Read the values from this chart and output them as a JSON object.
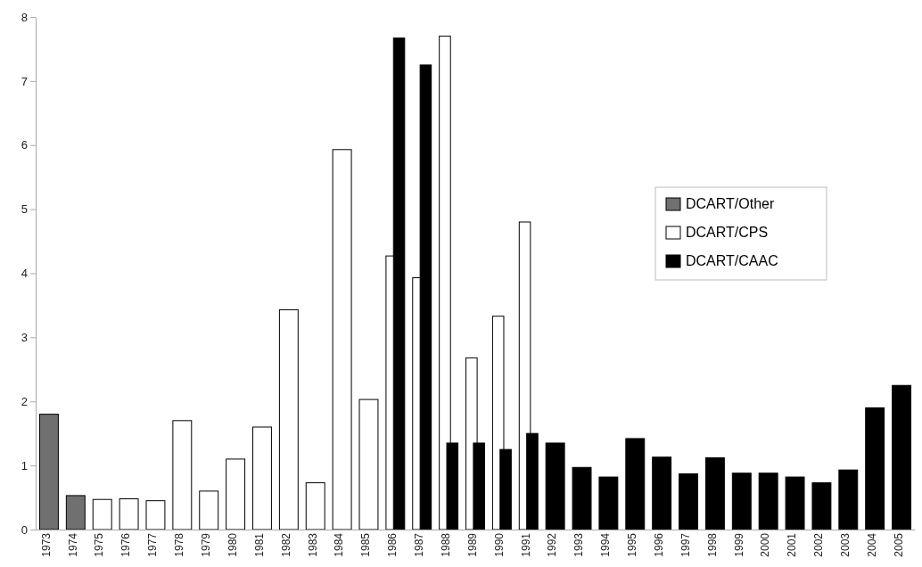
{
  "chart_data": {
    "type": "bar",
    "categories": [
      "1973",
      "1974",
      "1975",
      "1976",
      "1977",
      "1978",
      "1979",
      "1980",
      "1981",
      "1982",
      "1983",
      "1984",
      "1985",
      "1986",
      "1987",
      "1988",
      "1989",
      "1990",
      "1991",
      "1992",
      "1993",
      "1994",
      "1995",
      "1996",
      "1997",
      "1998",
      "1999",
      "2000",
      "2001",
      "2002",
      "2003",
      "2004",
      "2005"
    ],
    "series": [
      {
        "name": "DCART/Other",
        "color": "#707070",
        "values": [
          1.8,
          0.53,
          null,
          null,
          null,
          null,
          null,
          null,
          null,
          null,
          null,
          null,
          null,
          null,
          null,
          null,
          null,
          null,
          null,
          null,
          null,
          null,
          null,
          null,
          null,
          null,
          null,
          null,
          null,
          null,
          null,
          null,
          null
        ]
      },
      {
        "name": "DCART/CPS",
        "color": "#ffffff",
        "values": [
          null,
          null,
          0.47,
          0.48,
          0.45,
          1.7,
          0.6,
          1.1,
          1.6,
          3.43,
          0.73,
          5.93,
          2.03,
          4.27,
          3.93,
          7.7,
          2.68,
          3.33,
          4.8,
          null,
          null,
          null,
          null,
          null,
          null,
          null,
          null,
          null,
          null,
          null,
          null,
          null,
          null
        ]
      },
      {
        "name": "DCART/CAAC",
        "color": "#000000",
        "values": [
          null,
          null,
          null,
          null,
          null,
          null,
          null,
          null,
          null,
          null,
          null,
          null,
          null,
          7.67,
          7.25,
          1.35,
          1.35,
          1.25,
          1.5,
          1.35,
          0.97,
          0.82,
          1.42,
          1.13,
          0.87,
          1.12,
          0.88,
          0.88,
          0.82,
          0.73,
          0.93,
          1.9,
          2.25
        ]
      }
    ],
    "ylim": [
      0,
      8
    ],
    "yticks": [
      0,
      1,
      2,
      3,
      4,
      5,
      6,
      7,
      8
    ],
    "grid": false,
    "legend": "right"
  }
}
